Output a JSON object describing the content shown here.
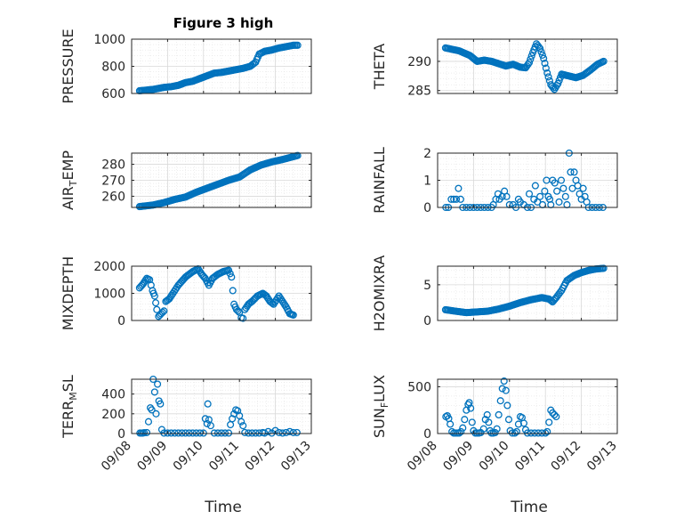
{
  "figure_title": "Figure 3 high",
  "marker_color": "#0072BD",
  "x_tick_labels": [
    "09/08",
    "09/09",
    "09/10",
    "09/11",
    "09/12",
    "09/13"
  ],
  "x_axis_label": "Time",
  "chart_data": [
    {
      "type": "scatter",
      "name": "pressure",
      "title": "Figure 3 high",
      "ylabel": "PRESSURE",
      "ylim": [
        600,
        1000
      ],
      "yticks": [
        600,
        800,
        1000
      ],
      "xlim": [
        0,
        5
      ],
      "grid": true,
      "anchors": [
        [
          0.22,
          620
        ],
        [
          0.6,
          630
        ],
        [
          0.9,
          645
        ],
        [
          1.1,
          650
        ],
        [
          1.3,
          660
        ],
        [
          1.5,
          680
        ],
        [
          1.7,
          690
        ],
        [
          1.9,
          710
        ],
        [
          2.1,
          730
        ],
        [
          2.3,
          750
        ],
        [
          2.5,
          755
        ],
        [
          2.7,
          765
        ],
        [
          2.9,
          775
        ],
        [
          3.1,
          785
        ],
        [
          3.3,
          800
        ],
        [
          3.45,
          830
        ],
        [
          3.55,
          890
        ],
        [
          3.7,
          910
        ],
        [
          3.9,
          920
        ],
        [
          4.1,
          935
        ],
        [
          4.3,
          945
        ],
        [
          4.5,
          955
        ],
        [
          4.62,
          955
        ]
      ]
    },
    {
      "type": "scatter",
      "name": "theta",
      "ylabel": "THETA",
      "ylim": [
        284.5,
        293.8
      ],
      "yticks": [
        285,
        290
      ],
      "xlim": [
        0,
        5
      ],
      "grid": true,
      "anchors": [
        [
          0.22,
          292.3
        ],
        [
          0.6,
          291.8
        ],
        [
          0.9,
          291.0
        ],
        [
          1.1,
          290.0
        ],
        [
          1.3,
          290.2
        ],
        [
          1.5,
          290.0
        ],
        [
          1.7,
          289.6
        ],
        [
          1.9,
          289.2
        ],
        [
          2.1,
          289.5
        ],
        [
          2.3,
          289.0
        ],
        [
          2.45,
          288.9
        ],
        [
          2.55,
          289.8
        ],
        [
          2.65,
          291.5
        ],
        [
          2.75,
          293.0
        ],
        [
          2.85,
          292.2
        ],
        [
          2.95,
          290.5
        ],
        [
          3.05,
          288.0
        ],
        [
          3.15,
          286.0
        ],
        [
          3.25,
          285.2
        ],
        [
          3.35,
          286.2
        ],
        [
          3.45,
          287.8
        ],
        [
          3.65,
          287.5
        ],
        [
          3.85,
          287.2
        ],
        [
          4.05,
          287.6
        ],
        [
          4.25,
          288.5
        ],
        [
          4.45,
          289.5
        ],
        [
          4.62,
          290.0
        ]
      ]
    },
    {
      "type": "scatter",
      "name": "air_temp",
      "ylabel": "AIR",
      "ylabel_sub": "T",
      "ylabel_tail": "EMP",
      "ylim": [
        253,
        287
      ],
      "yticks": [
        260,
        270,
        280
      ],
      "xlim": [
        0,
        5
      ],
      "grid": true,
      "anchors": [
        [
          0.22,
          253.5
        ],
        [
          0.6,
          254.5
        ],
        [
          0.9,
          256.0
        ],
        [
          1.2,
          258.0
        ],
        [
          1.5,
          259.5
        ],
        [
          1.8,
          262.5
        ],
        [
          2.1,
          265.0
        ],
        [
          2.4,
          267.5
        ],
        [
          2.7,
          270.0
        ],
        [
          3.0,
          272.0
        ],
        [
          3.3,
          276.5
        ],
        [
          3.6,
          279.5
        ],
        [
          3.9,
          281.5
        ],
        [
          4.2,
          283.0
        ],
        [
          4.45,
          284.5
        ],
        [
          4.62,
          285.5
        ]
      ]
    },
    {
      "type": "scatter",
      "name": "rainfall",
      "ylabel": "RAINFALL",
      "ylim": [
        0,
        2
      ],
      "yticks": [
        0,
        1,
        2
      ],
      "xlim": [
        0,
        5
      ],
      "grid": true,
      "points": [
        [
          0.23,
          0
        ],
        [
          0.3,
          0
        ],
        [
          0.38,
          0.3
        ],
        [
          0.45,
          0.3
        ],
        [
          0.52,
          0.3
        ],
        [
          0.58,
          0.7
        ],
        [
          0.64,
          0.3
        ],
        [
          0.7,
          0
        ],
        [
          0.8,
          0
        ],
        [
          0.9,
          0
        ],
        [
          1.0,
          0
        ],
        [
          1.1,
          0
        ],
        [
          1.2,
          0
        ],
        [
          1.3,
          0
        ],
        [
          1.4,
          0
        ],
        [
          1.5,
          0
        ],
        [
          1.55,
          0.1
        ],
        [
          1.62,
          0.3
        ],
        [
          1.68,
          0.5
        ],
        [
          1.72,
          0.3
        ],
        [
          1.8,
          0.4
        ],
        [
          1.86,
          0.6
        ],
        [
          1.92,
          0.4
        ],
        [
          2.0,
          0.1
        ],
        [
          2.1,
          0.1
        ],
        [
          2.18,
          0
        ],
        [
          2.25,
          0.3
        ],
        [
          2.3,
          0.2
        ],
        [
          2.4,
          0.1
        ],
        [
          2.5,
          0
        ],
        [
          2.55,
          0.5
        ],
        [
          2.6,
          0
        ],
        [
          2.68,
          0.3
        ],
        [
          2.72,
          0.8
        ],
        [
          2.78,
          0.2
        ],
        [
          2.85,
          0.4
        ],
        [
          2.92,
          0.1
        ],
        [
          2.98,
          0.6
        ],
        [
          3.03,
          1.0
        ],
        [
          3.08,
          0.4
        ],
        [
          3.12,
          0.3
        ],
        [
          3.15,
          0.1
        ],
        [
          3.2,
          1.0
        ],
        [
          3.26,
          0.9
        ],
        [
          3.32,
          0.6
        ],
        [
          3.38,
          0.2
        ],
        [
          3.44,
          1.0
        ],
        [
          3.5,
          0.7
        ],
        [
          3.56,
          0.4
        ],
        [
          3.6,
          0.1
        ],
        [
          3.66,
          2.0
        ],
        [
          3.7,
          1.3
        ],
        [
          3.75,
          0.7
        ],
        [
          3.8,
          1.3
        ],
        [
          3.85,
          1.0
        ],
        [
          3.9,
          0.8
        ],
        [
          3.95,
          0.5
        ],
        [
          4.0,
          0.3
        ],
        [
          4.05,
          0.7
        ],
        [
          4.1,
          0.4
        ],
        [
          4.15,
          0.2
        ],
        [
          4.2,
          0
        ],
        [
          4.3,
          0
        ],
        [
          4.4,
          0
        ],
        [
          4.5,
          0
        ],
        [
          4.6,
          0
        ]
      ]
    },
    {
      "type": "scatter",
      "name": "mixdepth",
      "ylabel": "MIXDEPTH",
      "ylim": [
        0,
        2000
      ],
      "yticks": [
        0,
        1000,
        2000
      ],
      "xlim": [
        0,
        5
      ],
      "grid": true,
      "anchors": [
        [
          0.22,
          1200
        ],
        [
          0.32,
          1350
        ],
        [
          0.42,
          1550
        ],
        [
          0.5,
          1500
        ],
        [
          0.58,
          1100
        ],
        [
          0.64,
          900
        ],
        [
          0.7,
          400
        ],
        [
          0.75,
          150
        ],
        [
          0.82,
          250
        ],
        [
          0.9,
          350
        ],
        [
          0.95,
          700
        ],
        [
          1.05,
          800
        ],
        [
          1.15,
          1000
        ],
        [
          1.3,
          1300
        ],
        [
          1.5,
          1600
        ],
        [
          1.7,
          1800
        ],
        [
          1.85,
          1900
        ],
        [
          1.95,
          1700
        ],
        [
          2.05,
          1550
        ],
        [
          2.15,
          1300
        ],
        [
          2.25,
          1550
        ],
        [
          2.4,
          1700
        ],
        [
          2.55,
          1800
        ],
        [
          2.7,
          1850
        ],
        [
          2.78,
          1600
        ],
        [
          2.85,
          600
        ],
        [
          2.92,
          400
        ],
        [
          3.0,
          300
        ],
        [
          3.05,
          100
        ],
        [
          3.1,
          80
        ],
        [
          3.15,
          400
        ],
        [
          3.25,
          600
        ],
        [
          3.35,
          700
        ],
        [
          3.5,
          900
        ],
        [
          3.65,
          1000
        ],
        [
          3.75,
          900
        ],
        [
          3.85,
          700
        ],
        [
          3.95,
          600
        ],
        [
          4.1,
          900
        ],
        [
          4.2,
          700
        ],
        [
          4.3,
          500
        ],
        [
          4.4,
          250
        ],
        [
          4.5,
          200
        ]
      ]
    },
    {
      "type": "scatter",
      "name": "h2o_mixing_ratio",
      "ylabel": "H2OMIXRA",
      "ylim": [
        0,
        7.6
      ],
      "yticks": [
        0,
        5
      ],
      "xlim": [
        0,
        5
      ],
      "grid": true,
      "anchors": [
        [
          0.22,
          1.5
        ],
        [
          0.5,
          1.3
        ],
        [
          0.8,
          1.1
        ],
        [
          1.1,
          1.2
        ],
        [
          1.4,
          1.3
        ],
        [
          1.7,
          1.6
        ],
        [
          2.0,
          2.0
        ],
        [
          2.3,
          2.5
        ],
        [
          2.6,
          2.9
        ],
        [
          2.9,
          3.2
        ],
        [
          3.1,
          3.0
        ],
        [
          3.2,
          2.6
        ],
        [
          3.3,
          3.2
        ],
        [
          3.45,
          4.2
        ],
        [
          3.6,
          5.6
        ],
        [
          3.8,
          6.3
        ],
        [
          4.0,
          6.7
        ],
        [
          4.2,
          7.0
        ],
        [
          4.4,
          7.2
        ],
        [
          4.62,
          7.3
        ]
      ]
    },
    {
      "type": "scatter",
      "name": "terrain_msl",
      "ylabel": "TERR",
      "ylabel_sub": "M",
      "ylabel_tail": "SL",
      "ylim": [
        0,
        550
      ],
      "yticks": [
        0,
        200,
        400
      ],
      "xlim": [
        0,
        5
      ],
      "grid": true,
      "points": [
        [
          0.23,
          5
        ],
        [
          0.27,
          5
        ],
        [
          0.31,
          5
        ],
        [
          0.35,
          8
        ],
        [
          0.42,
          10
        ],
        [
          0.47,
          120
        ],
        [
          0.52,
          260
        ],
        [
          0.56,
          240
        ],
        [
          0.6,
          550
        ],
        [
          0.64,
          420
        ],
        [
          0.68,
          200
        ],
        [
          0.72,
          500
        ],
        [
          0.76,
          330
        ],
        [
          0.8,
          300
        ],
        [
          0.84,
          40
        ],
        [
          0.9,
          5
        ],
        [
          1.0,
          5
        ],
        [
          1.1,
          5
        ],
        [
          1.2,
          5
        ],
        [
          1.3,
          5
        ],
        [
          1.4,
          5
        ],
        [
          1.5,
          5
        ],
        [
          1.6,
          5
        ],
        [
          1.7,
          5
        ],
        [
          1.8,
          5
        ],
        [
          1.9,
          5
        ],
        [
          2.0,
          5
        ],
        [
          2.05,
          150
        ],
        [
          2.1,
          100
        ],
        [
          2.12,
          300
        ],
        [
          2.15,
          140
        ],
        [
          2.2,
          80
        ],
        [
          2.3,
          5
        ],
        [
          2.4,
          5
        ],
        [
          2.5,
          5
        ],
        [
          2.6,
          5
        ],
        [
          2.7,
          5
        ],
        [
          2.75,
          90
        ],
        [
          2.8,
          150
        ],
        [
          2.85,
          200
        ],
        [
          2.9,
          240
        ],
        [
          2.95,
          230
        ],
        [
          3.0,
          180
        ],
        [
          3.05,
          120
        ],
        [
          3.1,
          80
        ],
        [
          3.15,
          10
        ],
        [
          3.25,
          5
        ],
        [
          3.35,
          5
        ],
        [
          3.45,
          5
        ],
        [
          3.55,
          5
        ],
        [
          3.65,
          10
        ],
        [
          3.7,
          5
        ],
        [
          3.8,
          20
        ],
        [
          3.9,
          5
        ],
        [
          4.0,
          30
        ],
        [
          4.1,
          10
        ],
        [
          4.2,
          5
        ],
        [
          4.3,
          10
        ],
        [
          4.4,
          20
        ],
        [
          4.5,
          10
        ],
        [
          4.6,
          10
        ]
      ]
    },
    {
      "type": "scatter",
      "name": "sun_flux",
      "ylabel": "SUN",
      "ylabel_sub": "F",
      "ylabel_tail": "LUX",
      "ylim": [
        0,
        580
      ],
      "yticks": [
        0,
        500
      ],
      "xlim": [
        0,
        5
      ],
      "grid": true,
      "points": [
        [
          0.23,
          180
        ],
        [
          0.27,
          190
        ],
        [
          0.31,
          160
        ],
        [
          0.35,
          100
        ],
        [
          0.4,
          20
        ],
        [
          0.45,
          5
        ],
        [
          0.5,
          5
        ],
        [
          0.55,
          5
        ],
        [
          0.6,
          5
        ],
        [
          0.65,
          20
        ],
        [
          0.7,
          60
        ],
        [
          0.75,
          150
        ],
        [
          0.8,
          250
        ],
        [
          0.85,
          310
        ],
        [
          0.88,
          330
        ],
        [
          0.92,
          270
        ],
        [
          0.96,
          120
        ],
        [
          1.0,
          30
        ],
        [
          1.05,
          5
        ],
        [
          1.1,
          5
        ],
        [
          1.15,
          5
        ],
        [
          1.2,
          10
        ],
        [
          1.28,
          50
        ],
        [
          1.33,
          150
        ],
        [
          1.38,
          200
        ],
        [
          1.42,
          120
        ],
        [
          1.46,
          30
        ],
        [
          1.5,
          5
        ],
        [
          1.55,
          5
        ],
        [
          1.6,
          10
        ],
        [
          1.65,
          50
        ],
        [
          1.7,
          200
        ],
        [
          1.75,
          350
        ],
        [
          1.8,
          480
        ],
        [
          1.85,
          560
        ],
        [
          1.9,
          460
        ],
        [
          1.94,
          300
        ],
        [
          1.98,
          150
        ],
        [
          2.02,
          30
        ],
        [
          2.08,
          5
        ],
        [
          2.15,
          5
        ],
        [
          2.2,
          20
        ],
        [
          2.25,
          100
        ],
        [
          2.3,
          180
        ],
        [
          2.35,
          170
        ],
        [
          2.4,
          110
        ],
        [
          2.45,
          40
        ],
        [
          2.5,
          5
        ],
        [
          2.6,
          5
        ],
        [
          2.7,
          5
        ],
        [
          2.8,
          5
        ],
        [
          2.9,
          5
        ],
        [
          3.0,
          5
        ],
        [
          3.05,
          20
        ],
        [
          3.1,
          120
        ],
        [
          3.15,
          250
        ],
        [
          3.2,
          220
        ],
        [
          3.25,
          200
        ],
        [
          3.3,
          180
        ]
      ]
    }
  ]
}
